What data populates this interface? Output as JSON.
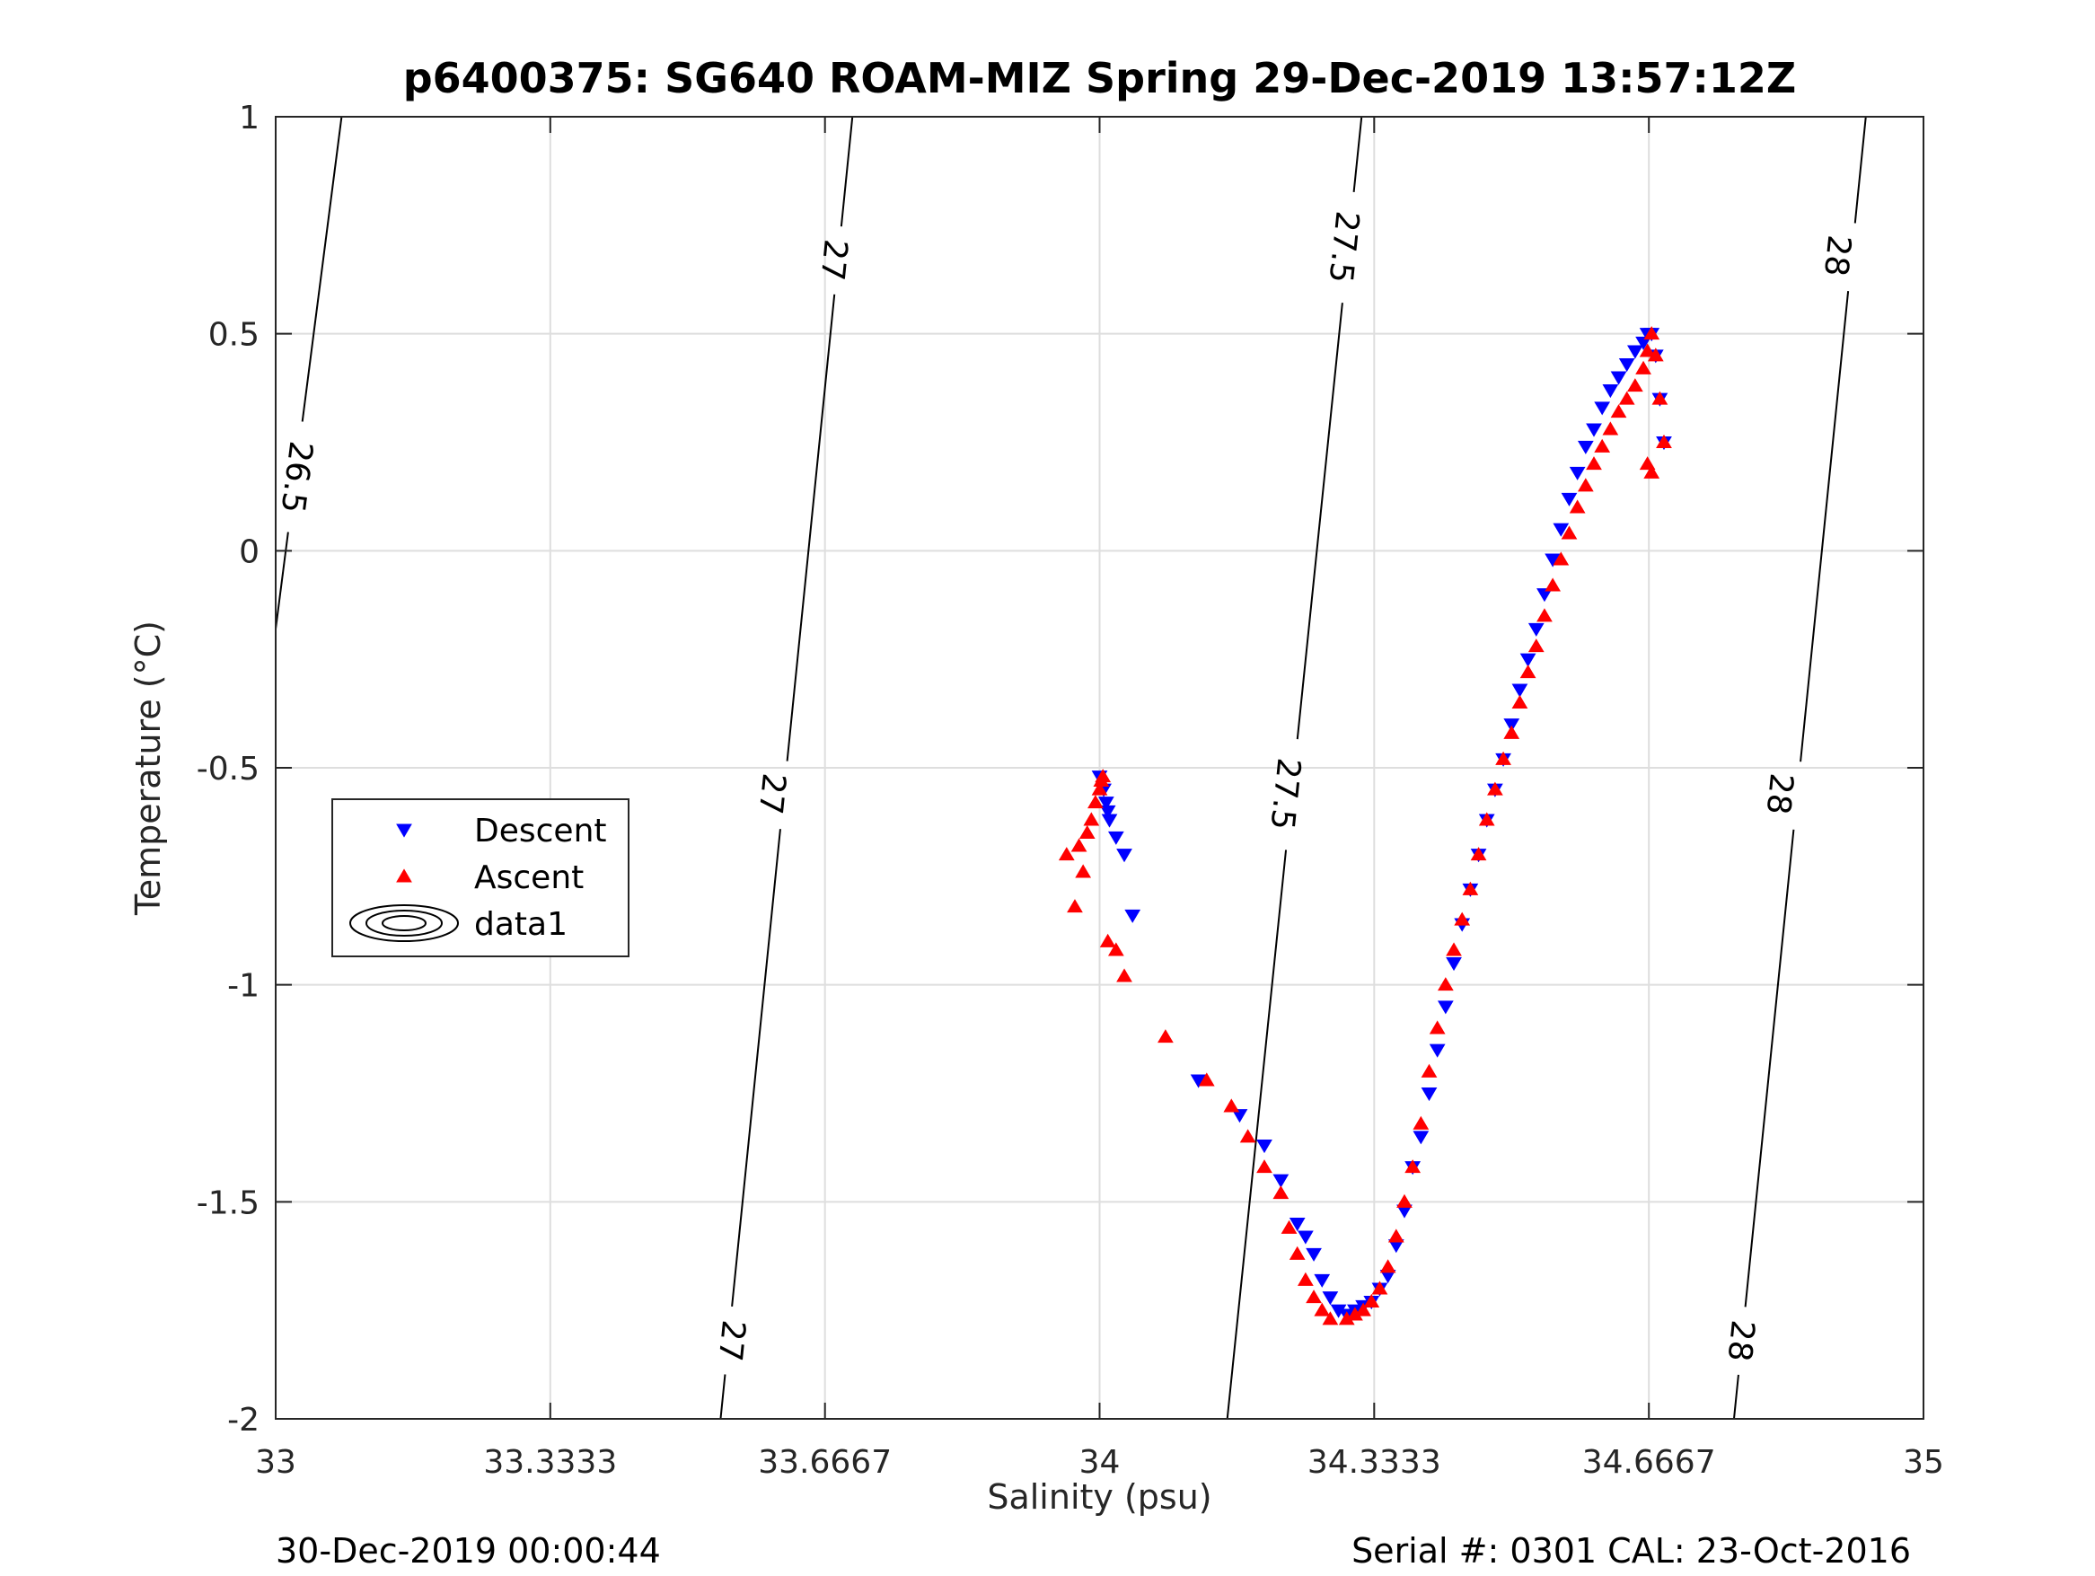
{
  "chart_data": {
    "type": "scatter",
    "title": "p6400375: SG640 ROAM-MIZ Spring 29-Dec-2019 13:57:12Z",
    "xlabel": "Salinity (psu)",
    "ylabel": "Temperature (°C)",
    "xlim": [
      33,
      35
    ],
    "ylim": [
      -2,
      1
    ],
    "xticks": [
      33,
      33.3333,
      33.6667,
      34,
      34.3333,
      34.6667,
      35
    ],
    "xtick_labels": [
      "33",
      "33.3333",
      "33.6667",
      "34",
      "34.3333",
      "34.6667",
      "35"
    ],
    "yticks": [
      -2,
      -1.5,
      -1,
      -0.5,
      0,
      0.5,
      1
    ],
    "ytick_labels": [
      "-2",
      "-1.5",
      "-1",
      "-0.5",
      "0",
      "0.5",
      "1"
    ],
    "grid": true,
    "legend_position": "middle-left",
    "series": [
      {
        "name": "Descent",
        "marker": "triangle-down",
        "color": "#0000ff",
        "x": [
          34.0,
          34.005,
          34.008,
          34.01,
          34.012,
          34.02,
          34.03,
          34.04,
          34.12,
          34.17,
          34.2,
          34.22,
          34.24,
          34.25,
          34.26,
          34.27,
          34.28,
          34.29,
          34.3,
          34.31,
          34.32,
          34.33,
          34.34,
          34.35,
          34.36,
          34.37,
          34.38,
          34.39,
          34.4,
          34.41,
          34.42,
          34.43,
          34.44,
          34.45,
          34.46,
          34.47,
          34.48,
          34.49,
          34.5,
          34.51,
          34.52,
          34.53,
          34.54,
          34.55,
          34.56,
          34.57,
          34.58,
          34.59,
          34.6,
          34.61,
          34.62,
          34.63,
          34.64,
          34.65,
          34.66,
          34.665,
          34.67,
          34.675,
          34.68,
          34.685
        ],
        "y": [
          -0.52,
          -0.55,
          -0.58,
          -0.6,
          -0.62,
          -0.66,
          -0.7,
          -0.84,
          -1.22,
          -1.3,
          -1.37,
          -1.45,
          -1.55,
          -1.58,
          -1.62,
          -1.68,
          -1.72,
          -1.75,
          -1.76,
          -1.75,
          -1.74,
          -1.73,
          -1.7,
          -1.67,
          -1.6,
          -1.52,
          -1.42,
          -1.35,
          -1.25,
          -1.15,
          -1.05,
          -0.95,
          -0.86,
          -0.78,
          -0.7,
          -0.62,
          -0.55,
          -0.48,
          -0.4,
          -0.32,
          -0.25,
          -0.18,
          -0.1,
          -0.02,
          0.05,
          0.12,
          0.18,
          0.24,
          0.28,
          0.33,
          0.37,
          0.4,
          0.43,
          0.46,
          0.48,
          0.5,
          0.5,
          0.45,
          0.35,
          0.25
        ]
      },
      {
        "name": "Ascent",
        "marker": "triangle-up",
        "color": "#ff0000",
        "x": [
          33.96,
          33.975,
          33.985,
          33.99,
          33.995,
          34.0,
          34.002,
          34.004,
          33.98,
          33.97,
          34.01,
          34.02,
          34.03,
          34.08,
          34.13,
          34.16,
          34.18,
          34.2,
          34.22,
          34.23,
          34.24,
          34.25,
          34.26,
          34.27,
          34.28,
          34.3,
          34.31,
          34.32,
          34.33,
          34.34,
          34.35,
          34.36,
          34.37,
          34.38,
          34.39,
          34.4,
          34.41,
          34.42,
          34.43,
          34.44,
          34.45,
          34.46,
          34.47,
          34.48,
          34.49,
          34.5,
          34.51,
          34.52,
          34.53,
          34.54,
          34.55,
          34.56,
          34.57,
          34.58,
          34.59,
          34.6,
          34.61,
          34.62,
          34.63,
          34.64,
          34.65,
          34.66,
          34.665,
          34.67,
          34.675,
          34.68,
          34.685,
          34.67,
          34.665
        ],
        "y": [
          -0.7,
          -0.68,
          -0.65,
          -0.62,
          -0.58,
          -0.55,
          -0.53,
          -0.52,
          -0.74,
          -0.82,
          -0.9,
          -0.92,
          -0.98,
          -1.12,
          -1.22,
          -1.28,
          -1.35,
          -1.42,
          -1.48,
          -1.56,
          -1.62,
          -1.68,
          -1.72,
          -1.75,
          -1.77,
          -1.77,
          -1.76,
          -1.75,
          -1.73,
          -1.7,
          -1.65,
          -1.58,
          -1.5,
          -1.42,
          -1.32,
          -1.2,
          -1.1,
          -1.0,
          -0.92,
          -0.85,
          -0.78,
          -0.7,
          -0.62,
          -0.55,
          -0.48,
          -0.42,
          -0.35,
          -0.28,
          -0.22,
          -0.15,
          -0.08,
          -0.02,
          0.04,
          0.1,
          0.15,
          0.2,
          0.24,
          0.28,
          0.32,
          0.35,
          0.38,
          0.42,
          0.46,
          0.5,
          0.45,
          0.35,
          0.25,
          0.18,
          0.2
        ]
      },
      {
        "name": "data1",
        "marker": "contour",
        "color": "#000000"
      }
    ],
    "contours": [
      {
        "label": "26.5",
        "line": [
          [
            33.0,
            -0.18
          ],
          [
            33.08,
            1.0
          ]
        ],
        "label_positions": [
          [
            33.025,
            0.17
          ]
        ]
      },
      {
        "label": "27",
        "line": [
          [
            33.54,
            -2.0
          ],
          [
            33.7,
            1.0
          ]
        ],
        "label_positions": [
          [
            33.553,
            -1.82
          ],
          [
            33.602,
            -0.56
          ],
          [
            33.677,
            0.67
          ]
        ]
      },
      {
        "label": "27.5",
        "line": [
          [
            34.155,
            -2.0
          ],
          [
            34.318,
            1.0
          ]
        ],
        "label_positions": [
          [
            34.225,
            -0.56
          ],
          [
            34.296,
            0.7
          ]
        ]
      },
      {
        "label": "28",
        "line": [
          [
            34.77,
            -2.0
          ],
          [
            34.93,
            1.0
          ]
        ],
        "label_positions": [
          [
            34.778,
            -1.82
          ],
          [
            34.825,
            -0.56
          ],
          [
            34.895,
            0.68
          ]
        ]
      }
    ]
  },
  "footer": {
    "left": "30-Dec-2019 00:00:44",
    "right": "Serial #: 0301  CAL: 23-Oct-2016"
  }
}
